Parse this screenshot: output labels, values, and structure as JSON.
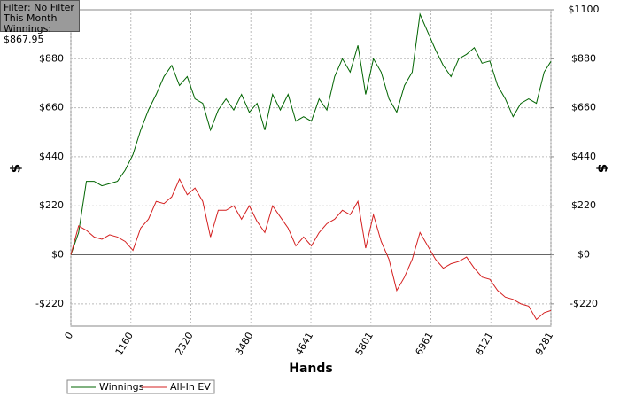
{
  "chart_data": {
    "type": "line",
    "info_box": [
      "Filter: No Filter",
      "This Month",
      "Winnings: $867.95"
    ],
    "xlabel": "Hands",
    "ylabel": "$",
    "y2label": "$",
    "legend_position": "bottom-left",
    "grid": true,
    "xlim": [
      0,
      9281
    ],
    "xticks": [
      0,
      1160,
      2320,
      3480,
      4641,
      5801,
      6961,
      8121,
      9281
    ],
    "ylim": [
      -320,
      1100
    ],
    "yticks": [
      {
        "value": -220,
        "label": "-$220"
      },
      {
        "value": 0,
        "label": "$0"
      },
      {
        "value": 220,
        "label": "$220"
      },
      {
        "value": 440,
        "label": "$440"
      },
      {
        "value": 660,
        "label": "$660"
      },
      {
        "value": 880,
        "label": "$880"
      }
    ],
    "y2lim": [
      -320,
      1100
    ],
    "y2ticks": [
      {
        "value": -220,
        "label": "-$220"
      },
      {
        "value": 0,
        "label": "$0"
      },
      {
        "value": 220,
        "label": "$220"
      },
      {
        "value": 440,
        "label": "$440"
      },
      {
        "value": 660,
        "label": "$660"
      },
      {
        "value": 880,
        "label": "$880"
      },
      {
        "value": 1100,
        "label": "$1100"
      }
    ],
    "x": [
      0,
      150,
      300,
      450,
      600,
      750,
      900,
      1050,
      1200,
      1350,
      1500,
      1650,
      1800,
      1950,
      2100,
      2250,
      2400,
      2550,
      2700,
      2850,
      3000,
      3150,
      3300,
      3450,
      3600,
      3750,
      3900,
      4050,
      4200,
      4350,
      4500,
      4650,
      4800,
      4950,
      5100,
      5250,
      5400,
      5550,
      5700,
      5850,
      6000,
      6150,
      6300,
      6450,
      6600,
      6750,
      6900,
      7050,
      7200,
      7350,
      7500,
      7650,
      7800,
      7950,
      8100,
      8250,
      8400,
      8550,
      8700,
      8850,
      9000,
      9150,
      9281
    ],
    "series": [
      {
        "name": "Winnings",
        "color": "#006400",
        "values": [
          0,
          100,
          330,
          330,
          310,
          320,
          330,
          380,
          450,
          560,
          650,
          720,
          800,
          850,
          760,
          800,
          700,
          680,
          560,
          650,
          700,
          650,
          720,
          640,
          680,
          560,
          720,
          650,
          720,
          600,
          620,
          600,
          700,
          650,
          800,
          880,
          820,
          940,
          720,
          880,
          820,
          700,
          640,
          760,
          820,
          1080,
          1000,
          920,
          850,
          800,
          880,
          900,
          930,
          860,
          870,
          760,
          700,
          620,
          680,
          700,
          680,
          820,
          868
        ]
      },
      {
        "name": "All-In EV",
        "color": "#d42020",
        "values": [
          0,
          130,
          110,
          80,
          70,
          90,
          80,
          60,
          20,
          120,
          160,
          240,
          230,
          260,
          340,
          270,
          300,
          240,
          80,
          200,
          200,
          220,
          160,
          220,
          150,
          100,
          220,
          170,
          120,
          40,
          80,
          40,
          100,
          140,
          160,
          200,
          180,
          240,
          30,
          180,
          60,
          -20,
          -160,
          -100,
          -20,
          100,
          40,
          -20,
          -60,
          -40,
          -30,
          -10,
          -60,
          -100,
          -110,
          -160,
          -190,
          -200,
          -220,
          -230,
          -290,
          -260,
          -250
        ]
      }
    ]
  }
}
